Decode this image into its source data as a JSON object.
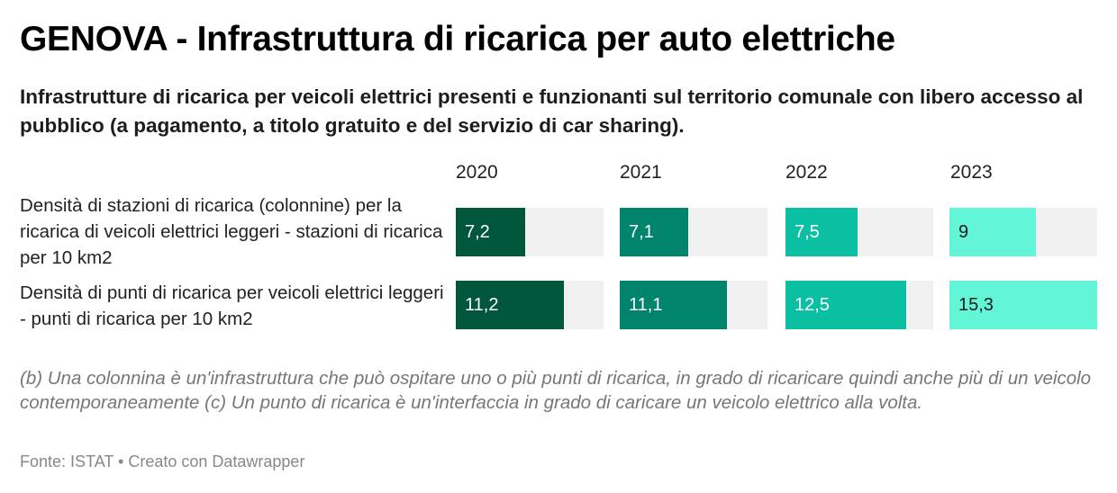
{
  "title": "GENOVA - Infrastruttura di ricarica per auto elettriche",
  "subtitle": "Infrastrutture di ricarica per veicoli elettrici presenti e funzionanti sul territorio comunale con libero accesso al pubblico (a pagamento, a titolo gratuito e del servizio di car sharing).",
  "notes": "(b) Una colonnina è un'infrastruttura che può ospitare uno o più punti di ricarica, in grado di ricaricare quindi anche più di un veicolo contemporaneamente (c) Un punto di ricarica è un'interfaccia in grado di caricare un veicolo elettrico alla volta.",
  "footer": "Fonte: ISTAT • Creato con Datawrapper",
  "colors": {
    "2020": "#00573b",
    "2021": "#00846c",
    "2022": "#0bbfa3",
    "2023": "#62f5d8",
    "track": "#f0f0f0"
  },
  "chart_data": {
    "type": "bar",
    "orientation": "horizontal",
    "columns": [
      "2020",
      "2021",
      "2022",
      "2023"
    ],
    "scale_max": 15.3,
    "rows": [
      {
        "label": "Densità di stazioni di ricarica (colonnine) per la ricarica di veicoli elettrici leggeri - stazioni di ricarica per 10 km2",
        "values": [
          7.2,
          7.1,
          7.5,
          9
        ],
        "display": [
          "7,2",
          "7,1",
          "7,5",
          "9"
        ]
      },
      {
        "label": "Densità di punti di ricarica per veicoli elettrici leggeri - punti di ricarica per 10 km2",
        "values": [
          11.2,
          11.1,
          12.5,
          15.3
        ],
        "display": [
          "11,2",
          "11,1",
          "12,5",
          "15,3"
        ]
      }
    ]
  }
}
